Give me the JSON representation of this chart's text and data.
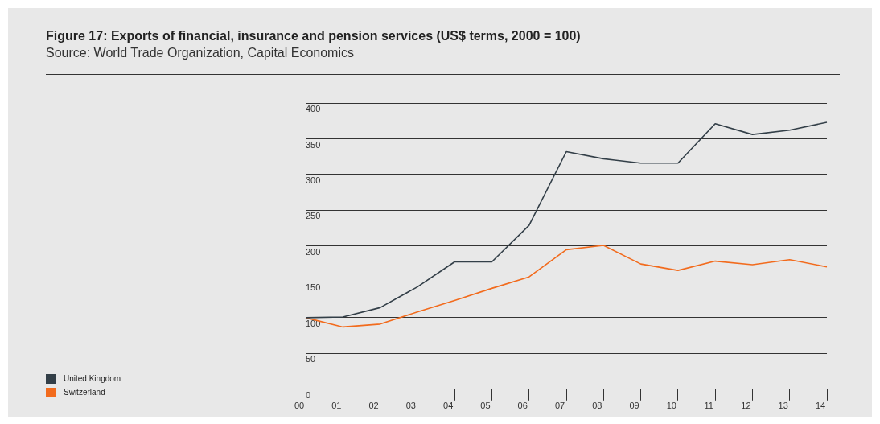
{
  "chart_data": {
    "type": "line",
    "title": "Figure 17: Exports of financial, insurance and pension services (US$ terms, 2000 = 100)",
    "subtitle": "Source: World Trade Organization, Capital Economics",
    "categories": [
      "00",
      "01",
      "02",
      "03",
      "04",
      "05",
      "06",
      "07",
      "08",
      "09",
      "10",
      "11",
      "12",
      "13",
      "14"
    ],
    "series": [
      {
        "name": "United Kingdom",
        "color": "#333f48",
        "values": [
          100,
          101,
          114,
          143,
          178,
          178,
          229,
          332,
          322,
          316,
          316,
          371,
          356,
          362,
          373
        ]
      },
      {
        "name": "Switzerland",
        "color": "#f26b1d",
        "values": [
          100,
          87,
          91,
          108,
          124,
          141,
          157,
          195,
          201,
          175,
          166,
          179,
          174,
          181,
          171
        ]
      }
    ],
    "ylim": [
      0,
      400
    ],
    "yticks": [
      0,
      50,
      100,
      150,
      200,
      250,
      300,
      350,
      400
    ],
    "grid": "y",
    "legend": "bottom left",
    "marker": "none",
    "line_style": "solid"
  }
}
